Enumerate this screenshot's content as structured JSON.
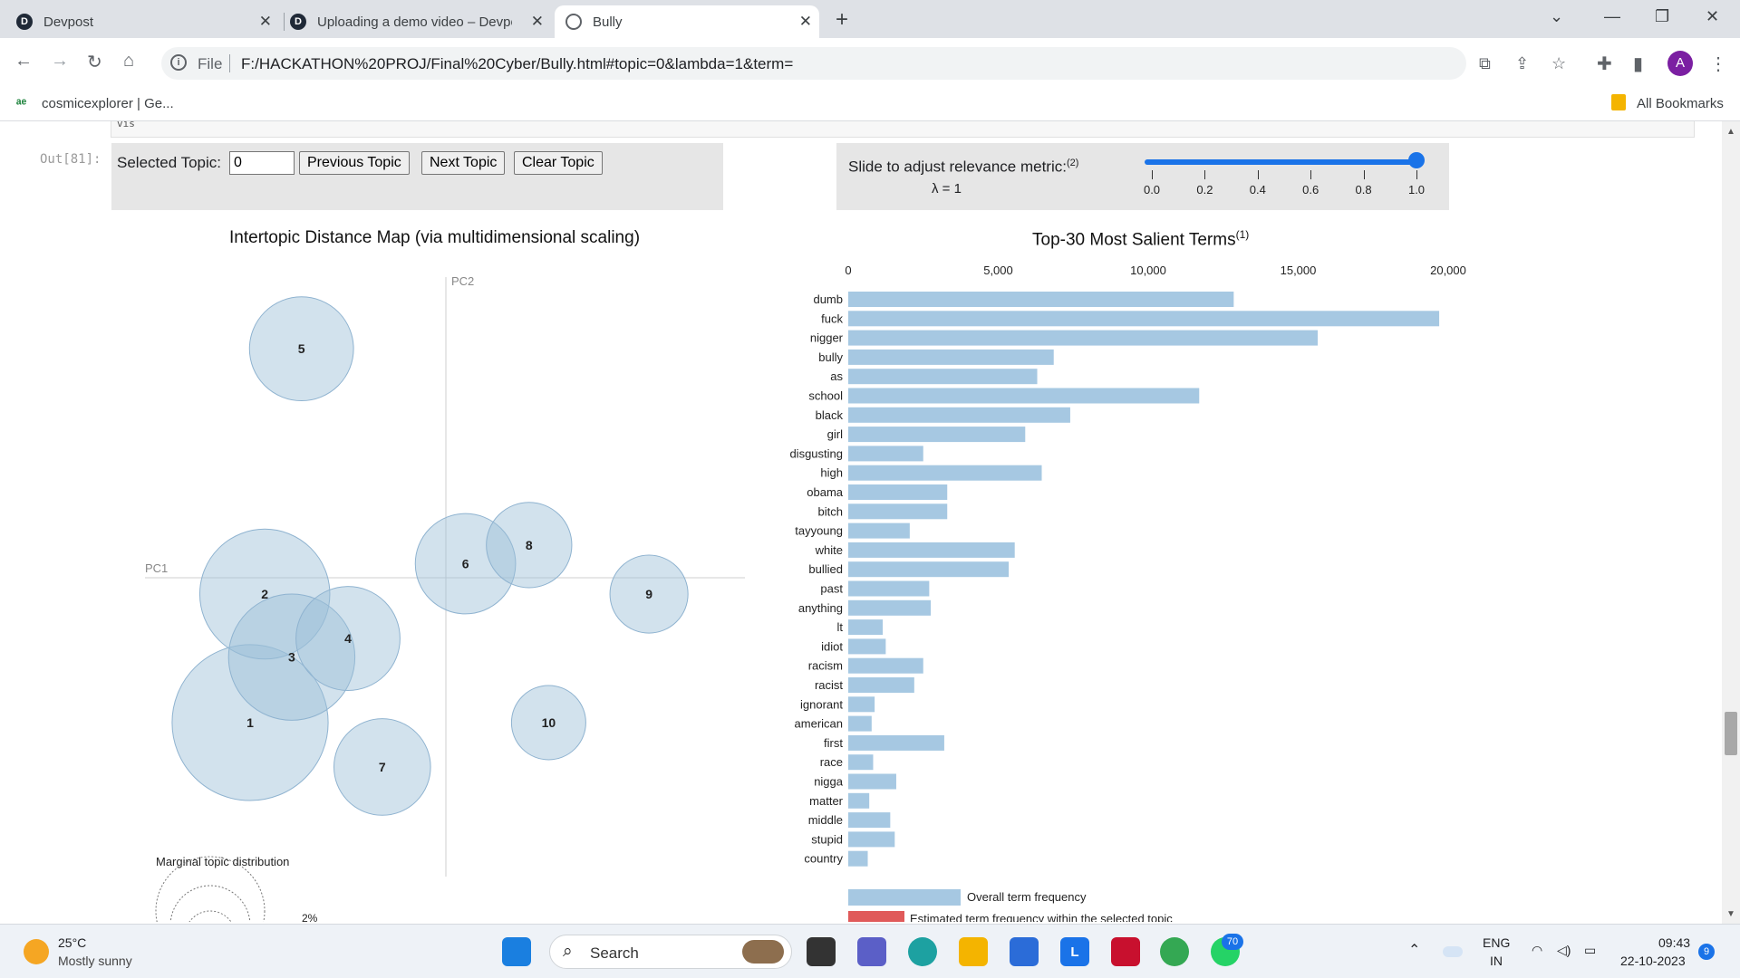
{
  "tabs": [
    {
      "title": "Devpost",
      "icon": "devpost-icon"
    },
    {
      "title": "Uploading a demo video – Devpost",
      "icon": "devpost-icon"
    },
    {
      "title": "Bully",
      "icon": "globe-icon"
    }
  ],
  "address_bar": {
    "scheme": "File",
    "url": "F:/HACKATHON%20PROJ/Final%20Cyber/Bully.html#topic=0&lambda=1&term="
  },
  "profile_initial": "A",
  "bookmarks": {
    "item": "cosmicexplorer | Ge...",
    "all": "All Bookmarks"
  },
  "notebook": {
    "out_prompt": "Out[81]:",
    "prev_cell_text": "vis"
  },
  "controls": {
    "selected_topic_label": "Selected Topic:",
    "selected_topic_value": "0",
    "prev_button": "Previous Topic",
    "next_button": "Next Topic",
    "clear_button": "Clear Topic"
  },
  "relevance": {
    "label": "Slide to adjust relevance metric:",
    "footnote": "(2)",
    "lambda_label": "λ = 1",
    "value": 1.0,
    "ticks": [
      "0.0",
      "0.2",
      "0.4",
      "0.6",
      "0.8",
      "1.0"
    ]
  },
  "intertopic_map": {
    "title": "Intertopic Distance Map (via multidimensional scaling)",
    "pc1_label": "PC1",
    "pc2_label": "PC2",
    "topics": [
      {
        "id": "1",
        "pc1": -0.8,
        "pc2": -0.62,
        "size": 0.42
      },
      {
        "id": "2",
        "pc1": -0.74,
        "pc2": -0.07,
        "size": 0.35
      },
      {
        "id": "3",
        "pc1": -0.63,
        "pc2": -0.34,
        "size": 0.34
      },
      {
        "id": "4",
        "pc1": -0.4,
        "pc2": -0.26,
        "size": 0.28
      },
      {
        "id": "5",
        "pc1": -0.59,
        "pc2": 0.98,
        "size": 0.28
      },
      {
        "id": "6",
        "pc1": 0.08,
        "pc2": 0.06,
        "size": 0.27
      },
      {
        "id": "7",
        "pc1": -0.26,
        "pc2": -0.81,
        "size": 0.26
      },
      {
        "id": "8",
        "pc1": 0.34,
        "pc2": 0.14,
        "size": 0.23
      },
      {
        "id": "9",
        "pc1": 0.83,
        "pc2": -0.07,
        "size": 0.21
      },
      {
        "id": "10",
        "pc1": 0.42,
        "pc2": -0.62,
        "size": 0.2
      }
    ],
    "marginal_label": "Marginal topic distribution",
    "marginal_pct": "2%"
  },
  "salient_terms": {
    "title": "Top-30 Most Salient Terms",
    "footnote": "(1)",
    "axis_ticks": [
      "0",
      "5,000",
      "10,000",
      "15,000",
      "20,000"
    ],
    "xlim": [
      0,
      20000
    ],
    "terms": [
      "dumb",
      "fuck",
      "nigger",
      "bully",
      "as",
      "school",
      "black",
      "girl",
      "disgusting",
      "high",
      "obama",
      "bitch",
      "tayyoung",
      "white",
      "bullied",
      "past",
      "anything",
      "lt",
      "idiot",
      "racism",
      "racist",
      "ignorant",
      "american",
      "first",
      "race",
      "nigga",
      "matter",
      "middle",
      "stupid",
      "country"
    ],
    "values": [
      12850,
      19700,
      15650,
      6850,
      6300,
      11700,
      7400,
      5900,
      2500,
      6450,
      3300,
      3300,
      2050,
      5550,
      5350,
      2700,
      2750,
      1150,
      1250,
      2500,
      2200,
      880,
      780,
      3200,
      830,
      1600,
      700,
      1400,
      1550,
      650
    ],
    "legend": {
      "overall": "Overall term frequency",
      "estimated": "Estimated term frequency within the selected topic"
    },
    "colors": {
      "overall": "#a6c8e2",
      "estimated": "#e05a5a"
    }
  },
  "taskbar": {
    "weather_temp": "25°C",
    "weather_desc": "Mostly sunny",
    "search_placeholder": "Search",
    "lang": "ENG",
    "region": "IN",
    "time": "09:43",
    "date": "22-10-2023",
    "whatsapp_badge": "70",
    "notif_badge": "9"
  }
}
